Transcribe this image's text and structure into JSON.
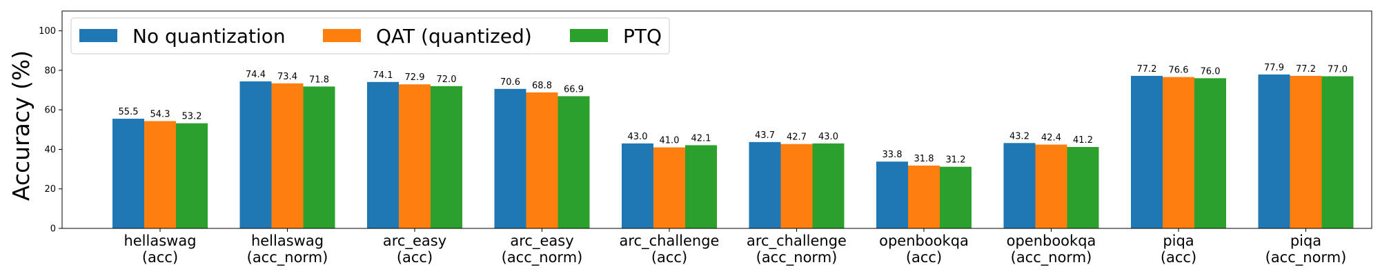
{
  "chart_data": {
    "type": "bar",
    "title": "",
    "xlabel": "",
    "ylabel": "Accuracy (%)",
    "ylim": [
      0,
      110
    ],
    "yticks": [
      0,
      20,
      40,
      60,
      80,
      100
    ],
    "grid": false,
    "legend_position": "top-left",
    "categories": [
      [
        "hellaswag",
        "(acc)"
      ],
      [
        "hellaswag",
        "(acc_norm)"
      ],
      [
        "arc_easy",
        "(acc)"
      ],
      [
        "arc_easy",
        "(acc_norm)"
      ],
      [
        "arc_challenge",
        "(acc)"
      ],
      [
        "arc_challenge",
        "(acc_norm)"
      ],
      [
        "openbookqa",
        "(acc)"
      ],
      [
        "openbookqa",
        "(acc_norm)"
      ],
      [
        "piqa",
        "(acc)"
      ],
      [
        "piqa",
        "(acc_norm)"
      ]
    ],
    "series": [
      {
        "name": "No quantization",
        "color": "#1f77b4",
        "values": [
          55.5,
          74.4,
          74.1,
          70.6,
          43.0,
          43.7,
          33.8,
          43.2,
          77.2,
          77.9
        ]
      },
      {
        "name": "QAT (quantized)",
        "color": "#ff7f0e",
        "values": [
          54.3,
          73.4,
          72.9,
          68.8,
          41.0,
          42.7,
          31.8,
          42.4,
          76.6,
          77.2
        ]
      },
      {
        "name": "PTQ",
        "color": "#2ca02c",
        "values": [
          53.2,
          71.8,
          72.0,
          66.9,
          42.1,
          43.0,
          31.2,
          41.2,
          76.0,
          77.0
        ]
      }
    ]
  }
}
